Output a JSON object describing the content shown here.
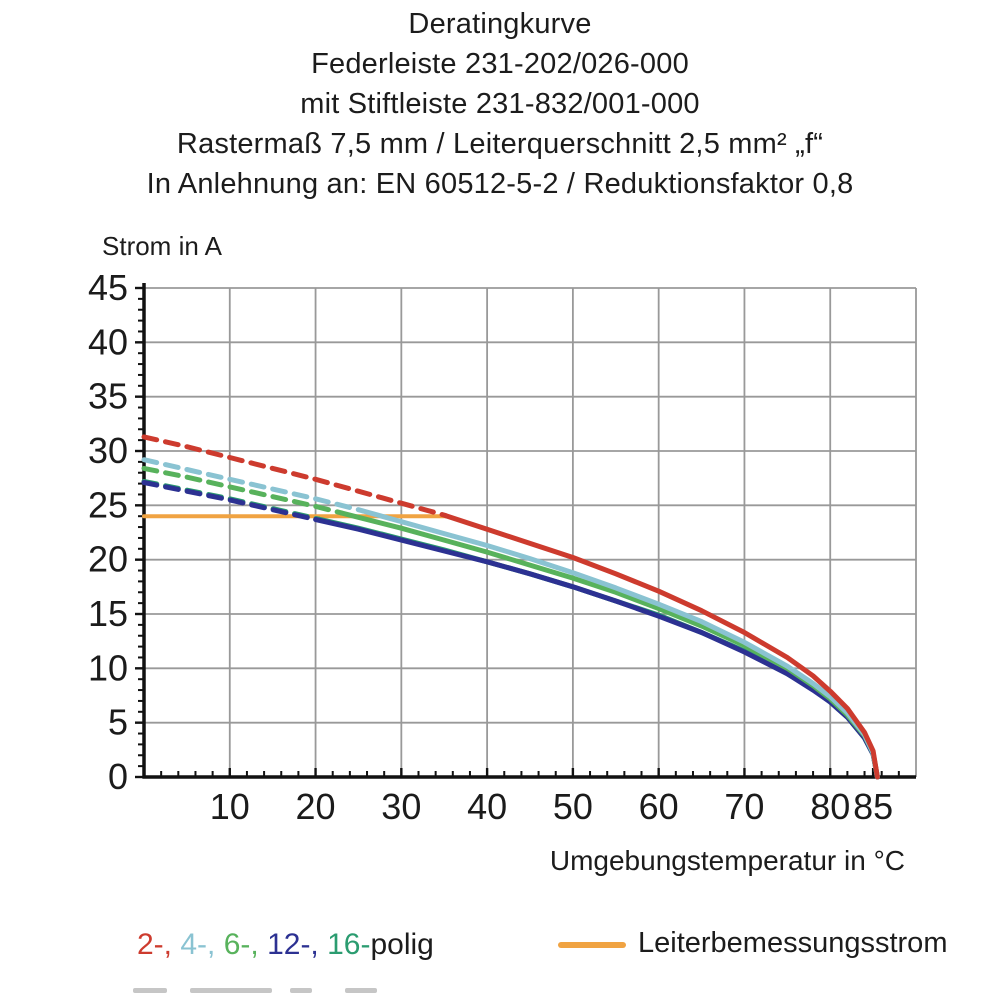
{
  "title": {
    "lines": [
      "Deratingkurve",
      "Federleiste 231-202/026-000",
      "mit Stiftleiste 231-832/001-000",
      "Rastermaß 7,5 mm / Leiterquerschnitt 2,5 mm² „f“",
      "In Anlehnung an: EN 60512-5-2 / Reduktionsfaktor 0,8"
    ]
  },
  "axes": {
    "y_title": "Strom in A",
    "x_title": "Umgebungstemperatur in °C"
  },
  "legend": {
    "poles": {
      "parts": [
        {
          "text": "2-,",
          "color": "#cd3b2e"
        },
        {
          "text": " 4-,",
          "color": "#8ac3d2"
        },
        {
          "text": " 6-,",
          "color": "#58b25c"
        },
        {
          "text": " 12-,",
          "color": "#2c3192"
        },
        {
          "text": " 16-",
          "color": "#2b9c70"
        },
        {
          "text": "polig",
          "color": "#1c1c1c"
        }
      ]
    },
    "rated": {
      "label": "Leiterbemessungsstrom",
      "color": "#f0a342"
    }
  },
  "colors": {
    "grid": "#999999",
    "axis": "#111111",
    "text": "#1b1b1b",
    "rated_orange": "#f0a342"
  },
  "chart_data": {
    "type": "line",
    "title": "Deratingkurve",
    "xlabel": "Umgebungstemperatur in °C",
    "ylabel": "Strom in A",
    "xlim": [
      0,
      90
    ],
    "ylim": [
      0,
      45
    ],
    "grid": true,
    "x_major_ticks": [
      10,
      20,
      30,
      40,
      50,
      60,
      70,
      80,
      85
    ],
    "y_major_ticks": [
      0,
      5,
      10,
      15,
      20,
      25,
      30,
      35,
      40,
      45
    ],
    "x_gridlines": [
      10,
      20,
      30,
      40,
      50,
      60,
      70,
      80,
      90
    ],
    "x_minor_step": 2,
    "y_minor_step": 1,
    "x": [
      0,
      5,
      10,
      15,
      20,
      25,
      30,
      35,
      40,
      45,
      50,
      55,
      60,
      65,
      70,
      75,
      78,
      80,
      82,
      84,
      85,
      85.5
    ],
    "series": [
      {
        "name": "2-polig",
        "color": "#cd3b2e",
        "dashed_until_x": 35.2,
        "values": [
          31.3,
          30.4,
          29.4,
          28.4,
          27.4,
          26.3,
          25.2,
          24.1,
          22.8,
          21.5,
          20.2,
          18.7,
          17.1,
          15.3,
          13.3,
          11.0,
          9.3,
          7.9,
          6.3,
          4.1,
          2.4,
          0
        ]
      },
      {
        "name": "4-polig",
        "color": "#8ac3d2",
        "dashed_until_x": 25.5,
        "values": [
          29.2,
          28.3,
          27.4,
          26.5,
          25.6,
          24.6,
          23.5,
          22.4,
          21.3,
          20.1,
          18.8,
          17.4,
          15.9,
          14.3,
          12.4,
          10.2,
          8.6,
          7.4,
          5.9,
          3.9,
          2.2,
          0
        ]
      },
      {
        "name": "6-polig",
        "color": "#58b25c",
        "dashed_until_x": 23.0,
        "values": [
          28.4,
          27.6,
          26.7,
          25.8,
          24.9,
          23.9,
          22.9,
          21.8,
          20.7,
          19.5,
          18.3,
          17.0,
          15.5,
          13.9,
          12.1,
          10.0,
          8.4,
          7.2,
          5.7,
          3.8,
          2.2,
          0
        ]
      },
      {
        "name": "12-polig",
        "color": "#2c3192",
        "dashed_until_x": 20.0,
        "values": [
          27.1,
          26.3,
          25.5,
          24.6,
          23.7,
          22.8,
          21.8,
          20.8,
          19.8,
          18.7,
          17.5,
          16.2,
          14.8,
          13.3,
          11.5,
          9.5,
          8.0,
          6.9,
          5.5,
          3.6,
          2.1,
          0
        ]
      },
      {
        "name": "16-polig",
        "color": "#2b9c70",
        "dashed_until_x": 20.4,
        "values": [
          27.2,
          26.4,
          25.6,
          24.7,
          23.8,
          22.9,
          21.9,
          20.9,
          19.8,
          18.7,
          17.5,
          16.2,
          14.9,
          13.3,
          11.6,
          9.5,
          8.1,
          6.9,
          5.5,
          3.6,
          2.1,
          0
        ]
      }
    ],
    "rated_line": {
      "name": "Leiterbemessungsstrom",
      "color": "#f0a342",
      "y": 24,
      "x_start": 0,
      "x_end": 35.2
    },
    "legend_position": "bottom"
  }
}
